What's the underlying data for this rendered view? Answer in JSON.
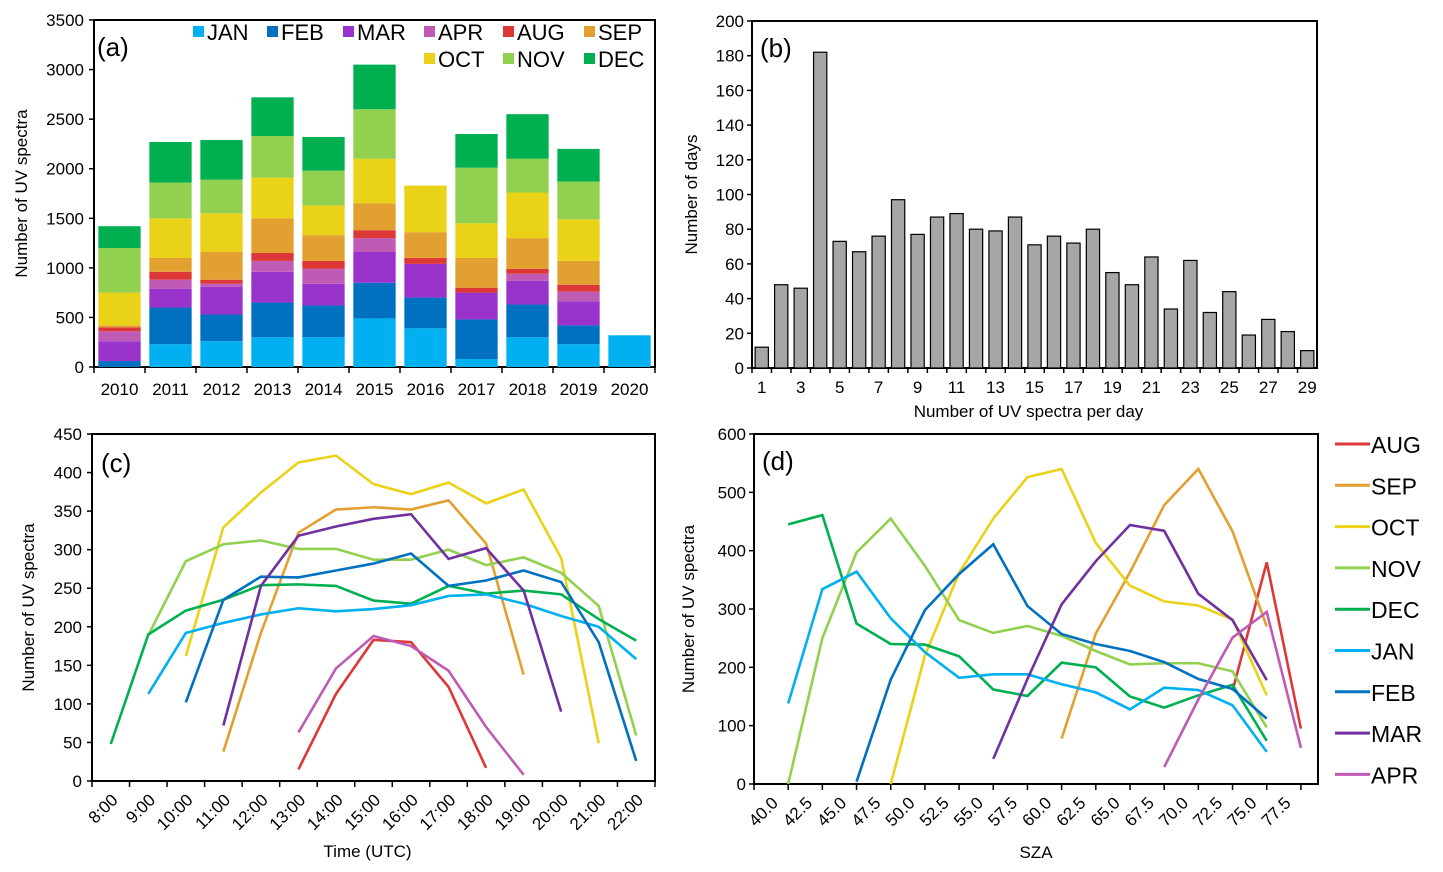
{
  "colors": {
    "JAN": "#00b0f0",
    "FEB": "#0070c0",
    "MAR": "#9933cc",
    "MAR_line": "#7030a0",
    "APR": "#bf5bb4",
    "AUG": "#dc3838",
    "SEP": "#e2a030",
    "OCT": "#ead219",
    "NOV": "#92d050",
    "DEC": "#00b050",
    "hist_bar": "#a6a6a6"
  },
  "chart_data": [
    {
      "id": "a",
      "panel_label": "(a)",
      "type": "bar",
      "stacked": true,
      "title": "",
      "xlabel": "",
      "ylabel": "Number of UV spectra",
      "ylim": [
        0,
        3500
      ],
      "yticks": [
        "0",
        "500",
        "1000",
        "1500",
        "2000",
        "2500",
        "3000",
        "3500"
      ],
      "categories": [
        "2010",
        "2011",
        "2012",
        "2013",
        "2014",
        "2015",
        "2016",
        "2017",
        "2018",
        "2019",
        "2020"
      ],
      "legend_position": "top-right",
      "series": [
        {
          "name": "JAN",
          "values": [
            0,
            230,
            260,
            300,
            300,
            490,
            390,
            80,
            300,
            230,
            320
          ]
        },
        {
          "name": "FEB",
          "values": [
            60,
            370,
            270,
            350,
            320,
            360,
            310,
            400,
            330,
            190,
            0
          ]
        },
        {
          "name": "MAR",
          "values": [
            200,
            190,
            280,
            310,
            220,
            310,
            340,
            270,
            240,
            240,
            0
          ]
        },
        {
          "name": "APR",
          "values": [
            100,
            90,
            30,
            110,
            150,
            140,
            0,
            0,
            70,
            100,
            0
          ]
        },
        {
          "name": "AUG",
          "values": [
            40,
            80,
            40,
            80,
            80,
            80,
            60,
            50,
            50,
            70,
            0
          ]
        },
        {
          "name": "SEP",
          "values": [
            20,
            140,
            280,
            350,
            260,
            270,
            260,
            300,
            310,
            240,
            0
          ]
        },
        {
          "name": "OCT",
          "values": [
            330,
            400,
            390,
            410,
            300,
            450,
            470,
            350,
            460,
            420,
            0
          ]
        },
        {
          "name": "NOV",
          "values": [
            450,
            360,
            340,
            420,
            350,
            500,
            0,
            560,
            340,
            380,
            0
          ]
        },
        {
          "name": "DEC",
          "values": [
            220,
            410,
            400,
            390,
            340,
            450,
            0,
            340,
            450,
            330,
            0
          ]
        }
      ]
    },
    {
      "id": "b",
      "panel_label": "(b)",
      "type": "bar",
      "title": "",
      "xlabel": "Number of UV spectra per day",
      "ylabel": "Number  of days",
      "ylim": [
        0,
        200
      ],
      "yticks": [
        "0",
        "20",
        "40",
        "60",
        "80",
        "100",
        "120",
        "140",
        "160",
        "180",
        "200"
      ],
      "xtick_labels": [
        "1",
        "3",
        "5",
        "7",
        "9",
        "11",
        "13",
        "15",
        "17",
        "19",
        "21",
        "23",
        "25",
        "27",
        "29"
      ],
      "categories": [
        1,
        2,
        3,
        4,
        5,
        6,
        7,
        8,
        9,
        10,
        11,
        12,
        13,
        14,
        15,
        16,
        17,
        18,
        19,
        20,
        21,
        22,
        23,
        24,
        25,
        26,
        27,
        28,
        29
      ],
      "values": [
        12,
        48,
        46,
        182,
        73,
        67,
        76,
        97,
        77,
        87,
        89,
        80,
        79,
        87,
        71,
        76,
        72,
        80,
        55,
        48,
        64,
        34,
        62,
        32,
        44,
        19,
        28,
        21,
        10
      ]
    },
    {
      "id": "c",
      "panel_label": "(c)",
      "type": "line",
      "title": "",
      "xlabel": "Time  (UTC)",
      "ylabel": "Number of UV spectra",
      "ylim": [
        0,
        450
      ],
      "yticks": [
        "0",
        "50",
        "100",
        "150",
        "200",
        "250",
        "300",
        "350",
        "400",
        "450"
      ],
      "xtick_labels": [
        "8:00",
        "9:00",
        "10:00",
        "11:00",
        "12:00",
        "13:00",
        "14:00",
        "15:00",
        "16:00",
        "17:00",
        "18:00",
        "19:00",
        "20:00",
        "21:00",
        "22:00"
      ],
      "x_note": "points at half-hour centers, x = hours (UTC)",
      "series": [
        {
          "name": "AUG",
          "x": [
            13.5,
            14.5,
            15.5,
            16.5,
            17.5,
            18.5
          ],
          "values": [
            15,
            113,
            183,
            180,
            122,
            17
          ]
        },
        {
          "name": "SEP",
          "x": [
            11.5,
            12.5,
            13.5,
            14.5,
            15.5,
            16.5,
            17.5,
            18.5,
            19.5
          ],
          "values": [
            38,
            192,
            322,
            352,
            355,
            352,
            364,
            308,
            138
          ]
        },
        {
          "name": "OCT",
          "x": [
            10.5,
            11.5,
            12.5,
            13.5,
            14.5,
            15.5,
            16.5,
            17.5,
            18.5,
            19.5,
            20.5,
            21.5
          ],
          "values": [
            162,
            329,
            374,
            413,
            422,
            385,
            372,
            387,
            360,
            378,
            289,
            49
          ]
        },
        {
          "name": "NOV",
          "x": [
            9.5,
            10.5,
            11.5,
            12.5,
            13.5,
            14.5,
            15.5,
            16.5,
            17.5,
            18.5,
            19.5,
            20.5,
            21.5,
            22.5
          ],
          "values": [
            189,
            285,
            307,
            312,
            301,
            301,
            287,
            287,
            300,
            280,
            290,
            270,
            227,
            59
          ]
        },
        {
          "name": "DEC",
          "x": [
            8.5,
            9.5,
            10.5,
            11.5,
            12.5,
            13.5,
            14.5,
            15.5,
            16.5,
            17.5,
            18.5,
            19.5,
            20.5,
            21.5,
            22.5
          ],
          "values": [
            48,
            190,
            221,
            235,
            254,
            255,
            253,
            234,
            230,
            253,
            243,
            247,
            242,
            210,
            182
          ]
        },
        {
          "name": "JAN",
          "x": [
            9.5,
            10.5,
            11.5,
            12.5,
            13.5,
            14.5,
            15.5,
            16.5,
            17.5,
            18.5,
            19.5,
            20.5,
            21.5,
            22.5
          ],
          "values": [
            113,
            192,
            205,
            216,
            224,
            220,
            223,
            228,
            240,
            242,
            230,
            214,
            200,
            158
          ]
        },
        {
          "name": "FEB",
          "x": [
            10.5,
            11.5,
            12.5,
            13.5,
            14.5,
            15.5,
            16.5,
            17.5,
            18.5,
            19.5,
            20.5,
            21.5,
            22.5
          ],
          "values": [
            102,
            235,
            265,
            264,
            273,
            282,
            295,
            253,
            260,
            273,
            258,
            180,
            26
          ]
        },
        {
          "name": "MAR",
          "x": [
            11.5,
            12.5,
            13.5,
            14.5,
            15.5,
            16.5,
            17.5,
            18.5,
            19.5,
            20.5
          ],
          "values": [
            72,
            253,
            318,
            330,
            340,
            346,
            288,
            302,
            247,
            90
          ]
        },
        {
          "name": "APR",
          "x": [
            13.5,
            14.5,
            15.5,
            16.5,
            17.5,
            18.5,
            19.5
          ],
          "values": [
            63,
            146,
            188,
            175,
            143,
            70,
            8
          ]
        }
      ]
    },
    {
      "id": "d",
      "panel_label": "(d)",
      "type": "line",
      "title": "",
      "xlabel": "SZA",
      "ylabel": "Number of UV spectra",
      "ylim": [
        0,
        600
      ],
      "yticks": [
        "0",
        "100",
        "200",
        "300",
        "400",
        "500",
        "600"
      ],
      "xtick_labels": [
        "40.0",
        "42.5",
        "45.0",
        "47.5",
        "50.0",
        "52.5",
        "55.0",
        "57.5",
        "60.0",
        "62.5",
        "65.0",
        "67.5",
        "70.0",
        "72.5",
        "75.0",
        "77.5"
      ],
      "legend_position": "right",
      "legend_order": [
        "AUG",
        "SEP",
        "OCT",
        "NOV",
        "DEC",
        "JAN",
        "FEB",
        "MAR",
        "APR"
      ],
      "series": [
        {
          "name": "AUG",
          "x": [
            73.75,
            76.25,
            78.75
          ],
          "values": [
            160,
            380,
            95
          ]
        },
        {
          "name": "SEP",
          "x": [
            61.25,
            63.75,
            66.25,
            68.75,
            71.25,
            73.75,
            76.25
          ],
          "values": [
            78,
            258,
            363,
            478,
            540,
            433,
            270
          ]
        },
        {
          "name": "OCT",
          "x": [
            48.75,
            51.25,
            53.75,
            56.25,
            58.75,
            61.25,
            63.75,
            66.25,
            68.75,
            71.25,
            73.75,
            76.25
          ],
          "values": [
            0,
            220,
            362,
            455,
            526,
            540,
            413,
            340,
            313,
            306,
            282,
            152
          ]
        },
        {
          "name": "NOV",
          "x": [
            41.25,
            43.75,
            46.25,
            48.75,
            51.25,
            53.75,
            56.25,
            58.75,
            61.25,
            63.75,
            66.25,
            68.75,
            71.25,
            73.75,
            76.25
          ],
          "values": [
            0,
            250,
            397,
            455,
            374,
            281,
            259,
            271,
            254,
            228,
            205,
            207,
            207,
            193,
            97
          ]
        },
        {
          "name": "DEC",
          "x": [
            41.25,
            43.75,
            46.25,
            48.75,
            51.25,
            53.75,
            56.25,
            58.75,
            61.25,
            63.75,
            66.25,
            68.75,
            71.25,
            73.75,
            76.25
          ],
          "values": [
            445,
            461,
            275,
            240,
            239,
            219,
            162,
            151,
            208,
            200,
            150,
            131,
            152,
            170,
            74
          ]
        },
        {
          "name": "JAN",
          "x": [
            41.25,
            43.75,
            46.25,
            48.75,
            51.25,
            53.75,
            56.25,
            58.75,
            61.25,
            63.75,
            66.25,
            68.75,
            71.25,
            73.75,
            76.25
          ],
          "values": [
            138,
            334,
            364,
            284,
            226,
            182,
            188,
            188,
            171,
            157,
            128,
            165,
            161,
            135,
            55
          ]
        },
        {
          "name": "FEB",
          "x": [
            46.25,
            48.75,
            51.25,
            53.75,
            56.25,
            58.75,
            61.25,
            63.75,
            66.25,
            68.75,
            71.25,
            73.75,
            76.25
          ],
          "values": [
            4,
            179,
            298,
            360,
            411,
            305,
            257,
            240,
            228,
            209,
            180,
            163,
            112
          ]
        },
        {
          "name": "MAR",
          "x": [
            56.25,
            58.75,
            61.25,
            63.75,
            66.25,
            68.75,
            71.25,
            73.75,
            76.25
          ],
          "values": [
            43,
            180,
            308,
            382,
            444,
            434,
            326,
            281,
            178
          ]
        },
        {
          "name": "APR",
          "x": [
            68.75,
            71.25,
            73.75,
            76.25,
            78.75
          ],
          "values": [
            29,
            145,
            251,
            295,
            62
          ]
        }
      ]
    }
  ]
}
